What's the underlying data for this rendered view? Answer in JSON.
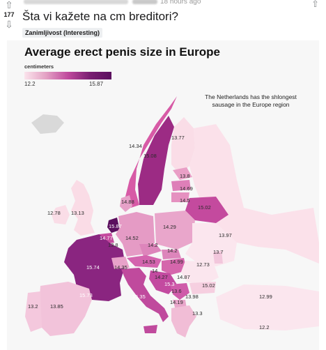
{
  "post": {
    "score": "177",
    "time": "18 hours ago",
    "title": "Šta vi kažete na cm breditori?",
    "flair": "Zanimljivost (Interesting)"
  },
  "image": {
    "title": "Average erect penis size in Europe",
    "unit": "centimeters",
    "legend_min": "12.2",
    "legend_max": "15.87",
    "annotation": "The Netherlands has the shlongest sausage in the Europe region"
  },
  "chart_data": {
    "type": "choropleth",
    "title": "Average erect penis size in Europe",
    "unit": "centimeters",
    "scale": {
      "min": 12.2,
      "max": 15.87
    },
    "colors": {
      "low": "#fbe4ec",
      "high": "#5b0f5e"
    },
    "values": [
      15.87,
      14.77,
      13.8,
      15.74,
      15.73,
      13.85,
      13.2,
      12.78,
      13.13,
      14.52,
      14.88,
      14.34,
      15.08,
      13.77,
      13.8,
      14.69,
      14.5,
      15.02,
      14.29,
      14.2,
      14.53,
      14.35,
      14.2,
      14.99,
      14,
      14.27,
      15.35,
      15.3,
      14.87,
      15.02,
      13.6,
      13.98,
      14.19,
      13.3,
      12.73,
      13.97,
      13.7,
      12.99,
      12.2
    ]
  }
}
